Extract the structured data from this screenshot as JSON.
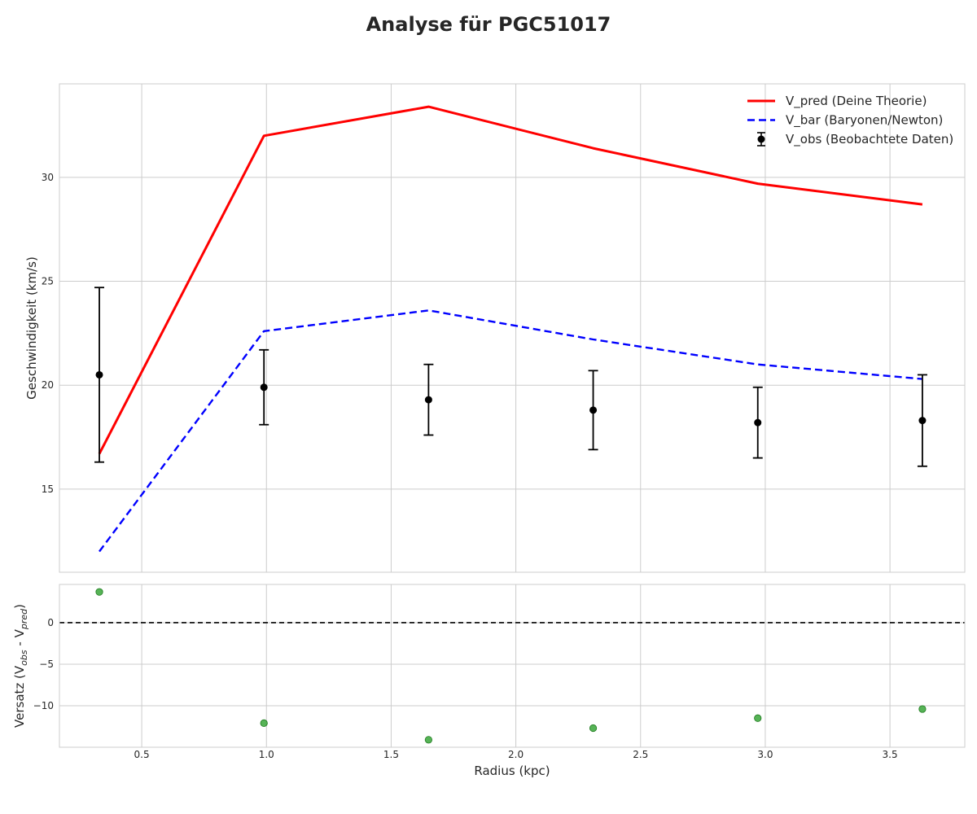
{
  "figure": {
    "title": "Analyse für PGC51017"
  },
  "chart_data": [
    {
      "type": "line",
      "panel": "main",
      "ylabel": "Geschwindigkeit (km/s)",
      "xlim": [
        0.17,
        3.8
      ],
      "ylim": [
        11.0,
        34.5
      ],
      "grid": true,
      "legend_position": "top-right",
      "x_ticks": [
        {
          "value": 0.5,
          "label": "0.5"
        },
        {
          "value": 1.0,
          "label": "1.0"
        },
        {
          "value": 1.5,
          "label": "1.5"
        },
        {
          "value": 2.0,
          "label": "2.0"
        },
        {
          "value": 2.5,
          "label": "2.5"
        },
        {
          "value": 3.0,
          "label": "3.0"
        },
        {
          "value": 3.5,
          "label": "3.5"
        }
      ],
      "y_ticks": [
        {
          "value": 15,
          "label": "15"
        },
        {
          "value": 20,
          "label": "20"
        },
        {
          "value": 25,
          "label": "25"
        },
        {
          "value": 30,
          "label": "30"
        }
      ],
      "x": [
        0.33,
        0.99,
        1.65,
        2.31,
        2.97,
        3.63
      ],
      "series": [
        {
          "name": "V_pred (Deine Theorie)",
          "style": "solid",
          "color": "#ff0000",
          "values": [
            16.7,
            32.0,
            33.4,
            31.4,
            29.7,
            28.7
          ]
        },
        {
          "name": "V_bar (Baryonen/Newton)",
          "style": "dashed",
          "color": "#0000ff",
          "values": [
            12.0,
            22.6,
            23.6,
            22.2,
            21.0,
            20.3
          ]
        },
        {
          "name": "V_obs (Beobachtete Daten)",
          "style": "errorbar",
          "color": "#000000",
          "values": [
            20.5,
            19.9,
            19.3,
            18.8,
            18.2,
            18.3
          ],
          "errors": [
            4.2,
            1.8,
            1.7,
            1.9,
            1.7,
            2.2
          ]
        }
      ]
    },
    {
      "type": "scatter",
      "panel": "residual",
      "xlabel": "Radius (kpc)",
      "ylabel": "Versatz (V_obs - V_pred)",
      "xlim": [
        0.17,
        3.8
      ],
      "ylim": [
        -15.0,
        4.6
      ],
      "grid": true,
      "reference_line": 0,
      "x_ticks": [
        {
          "value": 0.5,
          "label": "0.5"
        },
        {
          "value": 1.0,
          "label": "1.0"
        },
        {
          "value": 1.5,
          "label": "1.5"
        },
        {
          "value": 2.0,
          "label": "2.0"
        },
        {
          "value": 2.5,
          "label": "2.5"
        },
        {
          "value": 3.0,
          "label": "3.0"
        },
        {
          "value": 3.5,
          "label": "3.5"
        }
      ],
      "y_ticks": [
        {
          "value": -10,
          "label": "−10"
        },
        {
          "value": -5,
          "label": "−5"
        },
        {
          "value": 0,
          "label": "0"
        }
      ],
      "x": [
        0.33,
        0.99,
        1.65,
        2.31,
        2.97,
        3.63
      ],
      "series": [
        {
          "color": "#2ca02c",
          "values": [
            3.7,
            -12.1,
            -14.1,
            -12.7,
            -11.5,
            -10.4
          ]
        }
      ]
    }
  ]
}
